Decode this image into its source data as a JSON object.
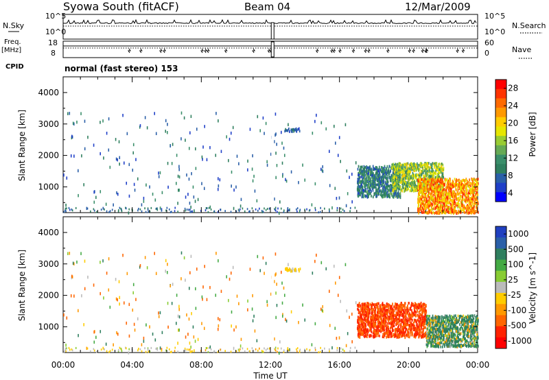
{
  "header": {
    "station": "Syowa South (fitACF)",
    "beam": "Beam 04",
    "date": "12/Mar/2009"
  },
  "panels": {
    "nsky_label": "N.Sky",
    "nsearch_label": "N.Search",
    "freq_label_line1": "Freq.",
    "freq_label_line2": "[MHz]",
    "nave_label": "Nave",
    "cpid_label": "CPID",
    "cpid_text": "normal (fast stereo) 153",
    "noise_ticks_left": [
      "10^5",
      "10^0"
    ],
    "noise_ticks_right": [
      "10^5",
      "10^0"
    ],
    "freq_ticks": [
      "18",
      "8"
    ],
    "nave_ticks": [
      "60",
      "0"
    ]
  },
  "colorbars": {
    "power": {
      "label": "Power [dB]",
      "ticks": [
        "28",
        "24",
        "20",
        "16",
        "12",
        "8",
        "4"
      ],
      "colors": [
        "#ff0000",
        "#ff3300",
        "#ff6a00",
        "#ff9900",
        "#ffcc00",
        "#e6e600",
        "#99cc33",
        "#66aa55",
        "#3a8e6a",
        "#2f7f5f",
        "#2a5fa8",
        "#1f3fc8",
        "#0000ff"
      ]
    },
    "velocity": {
      "label": "Velocity [m s^-1]",
      "ticks": [
        "1000",
        "500",
        "100",
        "25",
        "-25",
        "-100",
        "-500",
        "-1000"
      ],
      "colors": [
        "#2040c0",
        "#2a5fa8",
        "#2f7f5f",
        "#44aa44",
        "#88cc33",
        "#bbbbbb",
        "#ffcc00",
        "#ff9900",
        "#ff6600",
        "#ff2200",
        "#ff0000"
      ]
    }
  },
  "chart_data": [
    {
      "type": "heatmap",
      "title": "",
      "ylabel": "Slant Range [km]",
      "xlabel": "",
      "quantity": "Power [dB]",
      "ylim": [
        180,
        4500
      ],
      "xlim": [
        "00:00",
        "24:00"
      ],
      "y_ticks": [
        1000,
        2000,
        3000,
        4000
      ],
      "regions": [
        {
          "start_hr": 17.0,
          "end_hr": 19.5,
          "range_km": [
            700,
            1700
          ],
          "power_db": [
            4,
            12
          ]
        },
        {
          "start_hr": 19.0,
          "end_hr": 22.0,
          "range_km": [
            900,
            1800
          ],
          "power_db": [
            8,
            20
          ]
        },
        {
          "start_hr": 20.5,
          "end_hr": 24.0,
          "range_km": [
            200,
            1300
          ],
          "power_db": [
            16,
            28
          ]
        },
        {
          "start_hr": 12.8,
          "end_hr": 13.7,
          "range_km": [
            2800,
            2900
          ],
          "power_db": [
            4,
            8
          ]
        }
      ],
      "sparse_echoes_hr": [
        0,
        17
      ]
    },
    {
      "type": "heatmap",
      "title": "",
      "ylabel": "Slant Range [km]",
      "xlabel": "Time UT",
      "quantity": "Velocity [m s^-1]",
      "ylim": [
        180,
        4500
      ],
      "xlim": [
        "00:00",
        "24:00"
      ],
      "x_ticks": [
        "00:00",
        "04:00",
        "08:00",
        "12:00",
        "16:00",
        "20:00",
        "00:00"
      ],
      "y_ticks": [
        1000,
        2000,
        3000,
        4000
      ],
      "regions": [
        {
          "start_hr": 17.0,
          "end_hr": 21.0,
          "range_km": [
            700,
            1800
          ],
          "velocity_ms": [
            -500,
            -100
          ]
        },
        {
          "start_hr": 21.0,
          "end_hr": 24.0,
          "range_km": [
            400,
            1400
          ],
          "velocity_ms": [
            -100,
            500
          ]
        },
        {
          "start_hr": 12.8,
          "end_hr": 13.7,
          "range_km": [
            2800,
            2900
          ],
          "velocity_ms": [
            -25,
            25
          ]
        }
      ],
      "sparse_echoes_hr": [
        0,
        17
      ]
    }
  ]
}
